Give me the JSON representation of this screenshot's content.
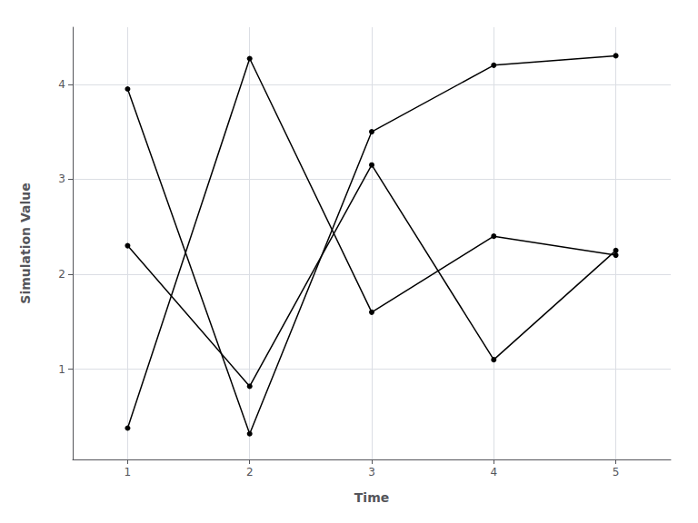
{
  "chart_data": {
    "type": "line",
    "x": [
      1,
      2,
      3,
      4,
      5
    ],
    "series": [
      {
        "values": [
          3.95,
          0.32,
          3.5,
          4.2,
          4.3
        ]
      },
      {
        "values": [
          2.3,
          0.82,
          3.15,
          1.1,
          2.25
        ]
      },
      {
        "values": [
          0.38,
          4.27,
          1.6,
          2.4,
          2.2
        ]
      }
    ],
    "color": "#000000",
    "marker": "circle",
    "xlabel": "Time",
    "ylabel": "Simulation Value",
    "xlim": [
      0.55,
      5.45
    ],
    "ylim": [
      0.05,
      4.6
    ],
    "xticks": [
      1,
      2,
      3,
      4,
      5
    ],
    "yticks": [
      1,
      2,
      3,
      4
    ],
    "grid": true
  }
}
